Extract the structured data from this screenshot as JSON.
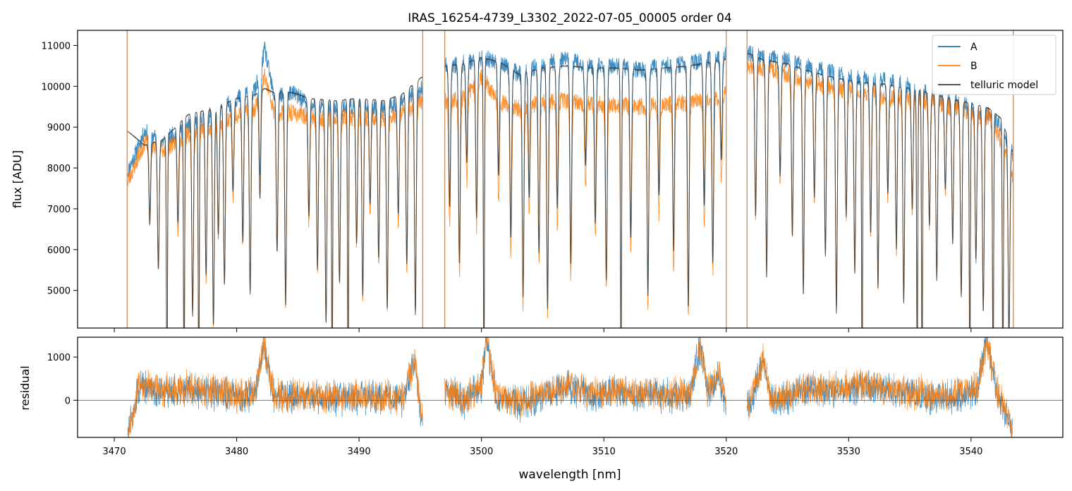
{
  "chart_data": [
    {
      "type": "line",
      "title": "IRAS_16254-4739_L3302_2022-07-05_00005  order 04",
      "xlabel": "",
      "ylabel": "flux [ADU]",
      "xlim": [
        3467,
        3547.5
      ],
      "ylim": [
        4080,
        11370
      ],
      "xticks": [
        3470,
        3480,
        3490,
        3500,
        3510,
        3520,
        3530,
        3540
      ],
      "yticks": [
        5000,
        6000,
        7000,
        8000,
        9000,
        10000,
        11000
      ],
      "ytick_labels": [
        "5000",
        "6000",
        "7000",
        "8000",
        "9000",
        "10000",
        "11000"
      ],
      "show_xtick_labels": false,
      "grid": false,
      "legend_position": "top-right",
      "gaps": [
        [
          3471.0,
          3471.05
        ],
        [
          3495.2,
          3497.0
        ],
        [
          3520.0,
          3521.7
        ]
      ],
      "series": [
        {
          "name": "A",
          "color": "#1f77b4",
          "x": [
            3471.1,
            3472.5,
            3474.0,
            3476.0,
            3478.0,
            3480.0,
            3481.5,
            3482.3,
            3483.0,
            3484.5,
            3486.0,
            3488.0,
            3490.0,
            3492.0,
            3493.5,
            3495.0,
            3497.1,
            3498.5,
            3500.0,
            3501.5,
            3503.0,
            3505.0,
            3507.0,
            3509.0,
            3511.0,
            3513.0,
            3515.0,
            3517.0,
            3519.8,
            3521.9,
            3523.0,
            3525.0,
            3527.0,
            3529.0,
            3531.0,
            3533.0,
            3535.0,
            3537.0,
            3539.0,
            3540.5,
            3541.5,
            3542.5,
            3543.4
          ],
          "values": [
            7900,
            8900,
            8650,
            9050,
            9300,
            9700,
            9900,
            10900,
            9800,
            9850,
            9550,
            9450,
            9500,
            9450,
            9650,
            9900,
            10500,
            10550,
            10700,
            10600,
            10300,
            10550,
            10650,
            10500,
            10500,
            10400,
            10500,
            10550,
            10750,
            10800,
            10700,
            10650,
            10450,
            10300,
            10200,
            10150,
            10000,
            9750,
            9600,
            9400,
            9300,
            9000,
            8350
          ]
        },
        {
          "name": "B",
          "color": "#ff7f0e",
          "x": [
            3471.1,
            3472.5,
            3474.0,
            3476.0,
            3478.0,
            3480.0,
            3481.5,
            3482.3,
            3483.0,
            3484.5,
            3486.0,
            3488.0,
            3490.0,
            3492.0,
            3493.5,
            3495.0,
            3497.1,
            3498.5,
            3500.0,
            3501.5,
            3503.0,
            3505.0,
            3507.0,
            3509.0,
            3511.0,
            3513.0,
            3515.0,
            3517.0,
            3519.8,
            3521.9,
            3523.0,
            3525.0,
            3527.0,
            3529.0,
            3531.0,
            3533.0,
            3535.0,
            3537.0,
            3539.0,
            3540.5,
            3541.5,
            3542.5,
            3543.4
          ],
          "values": [
            7650,
            8650,
            8450,
            8800,
            9050,
            9300,
            9450,
            10250,
            9400,
            9350,
            9250,
            9200,
            9250,
            9200,
            9350,
            9600,
            9650,
            9700,
            10250,
            9600,
            9450,
            9600,
            9650,
            9550,
            9550,
            9500,
            9550,
            9600,
            9750,
            10500,
            10450,
            10300,
            10100,
            9950,
            9850,
            9750,
            9700,
            9600,
            9450,
            9300,
            9250,
            8600,
            7800
          ]
        },
        {
          "name": "telluric model",
          "color": "#3a3a3a",
          "x": [
            3471.1,
            3472.5,
            3474.0,
            3476.0,
            3478.0,
            3480.0,
            3481.5,
            3482.3,
            3483.0,
            3484.5,
            3486.0,
            3488.0,
            3490.0,
            3492.0,
            3493.5,
            3495.0,
            3497.1,
            3498.5,
            3500.0,
            3501.5,
            3503.0,
            3505.0,
            3507.0,
            3509.0,
            3511.0,
            3513.0,
            3515.0,
            3517.0,
            3519.8,
            3521.9,
            3523.0,
            3525.0,
            3527.0,
            3529.0,
            3531.0,
            3533.0,
            3535.0,
            3537.0,
            3539.0,
            3540.5,
            3541.5,
            3542.5,
            3543.4
          ],
          "values": [
            8900,
            8550,
            8700,
            9300,
            9450,
            9700,
            9800,
            9950,
            9850,
            9850,
            9700,
            9650,
            9700,
            9650,
            9800,
            10200,
            10500,
            10550,
            10700,
            10600,
            10300,
            10450,
            10500,
            10450,
            10450,
            10400,
            10450,
            10500,
            10650,
            10800,
            10650,
            10550,
            10350,
            10200,
            10100,
            10050,
            9950,
            9800,
            9650,
            9550,
            9450,
            9200,
            8400
          ]
        }
      ]
    },
    {
      "type": "line",
      "title": "",
      "xlabel": "wavelength [nm]",
      "ylabel": "residual",
      "xlim": [
        3467,
        3547.5
      ],
      "ylim": [
        -860,
        1460
      ],
      "xticks": [
        3470,
        3480,
        3490,
        3500,
        3510,
        3520,
        3530,
        3540
      ],
      "xtick_labels": [
        "3470",
        "3480",
        "3490",
        "3500",
        "3510",
        "3520",
        "3530",
        "3540"
      ],
      "yticks": [
        0,
        1000
      ],
      "ytick_labels": [
        "0",
        "1000"
      ],
      "zero_line": 0,
      "grid": false,
      "gaps": [
        [
          3495.2,
          3497.0
        ],
        [
          3520.0,
          3521.7
        ]
      ],
      "series": [
        {
          "name": "A",
          "color": "#1f77b4",
          "x": [
            3471.1,
            3472.0,
            3474.0,
            3476.0,
            3478.0,
            3480.0,
            3481.5,
            3482.2,
            3483.0,
            3485.0,
            3488.0,
            3491.0,
            3493.5,
            3494.6,
            3495.1,
            3497.1,
            3498.5,
            3500.0,
            3500.4,
            3501.2,
            3503.0,
            3505.0,
            3507.0,
            3509.0,
            3511.0,
            3513.0,
            3515.0,
            3517.0,
            3517.9,
            3518.5,
            3519.4,
            3519.9,
            3521.9,
            3523.0,
            3523.8,
            3526.0,
            3529.0,
            3532.0,
            3535.0,
            3538.0,
            3540.5,
            3541.3,
            3542.0,
            3543.4
          ],
          "values": [
            -800,
            300,
            200,
            250,
            150,
            100,
            150,
            1300,
            100,
            80,
            50,
            60,
            0,
            900,
            -500,
            300,
            -50,
            300,
            1400,
            100,
            -100,
            100,
            300,
            100,
            200,
            150,
            100,
            100,
            1300,
            150,
            600,
            -50,
            -150,
            900,
            -100,
            200,
            250,
            300,
            150,
            50,
            200,
            1450,
            300,
            -750
          ]
        },
        {
          "name": "B",
          "color": "#ff7f0e",
          "x": [
            3471.1,
            3472.0,
            3474.0,
            3476.0,
            3478.0,
            3480.0,
            3481.5,
            3482.2,
            3483.0,
            3485.0,
            3488.0,
            3491.0,
            3493.5,
            3494.6,
            3495.1,
            3497.1,
            3498.5,
            3500.0,
            3500.4,
            3501.2,
            3503.0,
            3505.0,
            3507.0,
            3509.0,
            3511.0,
            3513.0,
            3515.0,
            3517.0,
            3517.9,
            3518.5,
            3519.4,
            3519.9,
            3521.9,
            3523.0,
            3523.8,
            3526.0,
            3529.0,
            3532.0,
            3535.0,
            3538.0,
            3540.5,
            3541.3,
            3542.0,
            3543.4
          ],
          "values": [
            -750,
            350,
            250,
            300,
            200,
            120,
            200,
            1350,
            150,
            100,
            80,
            100,
            50,
            950,
            -450,
            250,
            0,
            350,
            1450,
            150,
            -50,
            150,
            350,
            150,
            250,
            200,
            150,
            150,
            1250,
            200,
            650,
            0,
            -100,
            950,
            -50,
            250,
            300,
            350,
            200,
            100,
            250,
            1400,
            350,
            -700
          ]
        }
      ]
    }
  ]
}
